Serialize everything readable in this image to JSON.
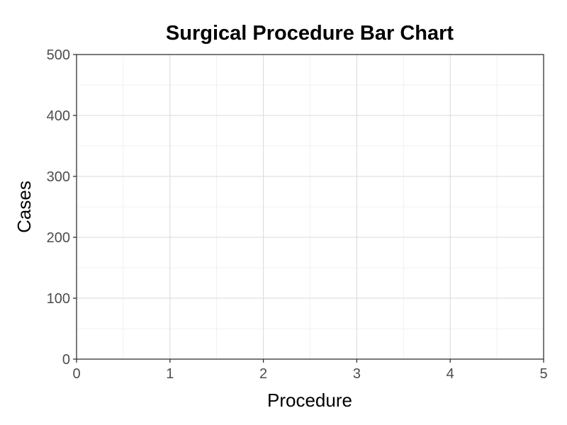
{
  "chart_data": {
    "type": "bar",
    "title": "Surgical Procedure Bar Chart",
    "xlabel": "Procedure",
    "ylabel": "Cases",
    "xlim": [
      0,
      5
    ],
    "ylim": [
      0,
      500
    ],
    "x_ticks": [
      "0",
      "1",
      "2",
      "3",
      "4",
      "5"
    ],
    "y_ticks": [
      "0",
      "100",
      "200",
      "300",
      "400",
      "500"
    ],
    "categories": [],
    "values": [],
    "grid": true,
    "colors": {
      "background": "#ffffff",
      "grid_major": "#d9d9d9",
      "grid_minor": "#ececec",
      "axis_line": "#333333",
      "tick_text": "#4d4d4d"
    }
  }
}
